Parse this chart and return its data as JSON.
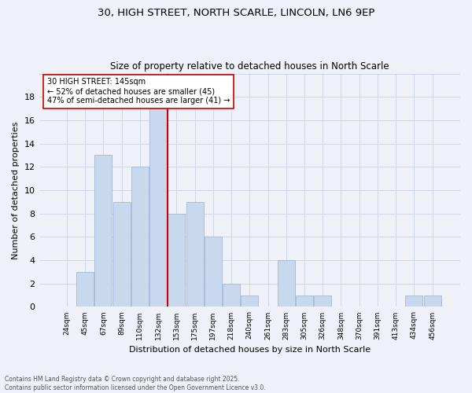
{
  "title1": "30, HIGH STREET, NORTH SCARLE, LINCOLN, LN6 9EP",
  "title2": "Size of property relative to detached houses in North Scarle",
  "xlabel": "Distribution of detached houses by size in North Scarle",
  "ylabel": "Number of detached properties",
  "bar_labels": [
    "24sqm",
    "45sqm",
    "67sqm",
    "89sqm",
    "110sqm",
    "132sqm",
    "153sqm",
    "175sqm",
    "197sqm",
    "218sqm",
    "240sqm",
    "261sqm",
    "283sqm",
    "305sqm",
    "326sqm",
    "348sqm",
    "370sqm",
    "391sqm",
    "413sqm",
    "434sqm",
    "456sqm"
  ],
  "bar_values": [
    0,
    3,
    13,
    9,
    12,
    17,
    8,
    9,
    6,
    2,
    1,
    0,
    4,
    1,
    1,
    0,
    0,
    0,
    0,
    1,
    1
  ],
  "bar_color": "#c8d9ee",
  "bar_edge_color": "#a0b8d8",
  "vline_x": 5.5,
  "vline_color": "#cc0000",
  "annotation_line1": "30 HIGH STREET: 145sqm",
  "annotation_line2": "← 52% of detached houses are smaller (45)",
  "annotation_line3": "47% of semi-detached houses are larger (41) →",
  "annotation_box_color": "#ffffff",
  "annotation_box_edge": "#cc0000",
  "footer_text": "Contains HM Land Registry data © Crown copyright and database right 2025.\nContains public sector information licensed under the Open Government Licence v3.0.",
  "ylim": [
    0,
    20
  ],
  "yticks": [
    0,
    2,
    4,
    6,
    8,
    10,
    12,
    14,
    16,
    18,
    20
  ],
  "grid_color": "#d0d8e8",
  "bg_color": "#eef2f8"
}
